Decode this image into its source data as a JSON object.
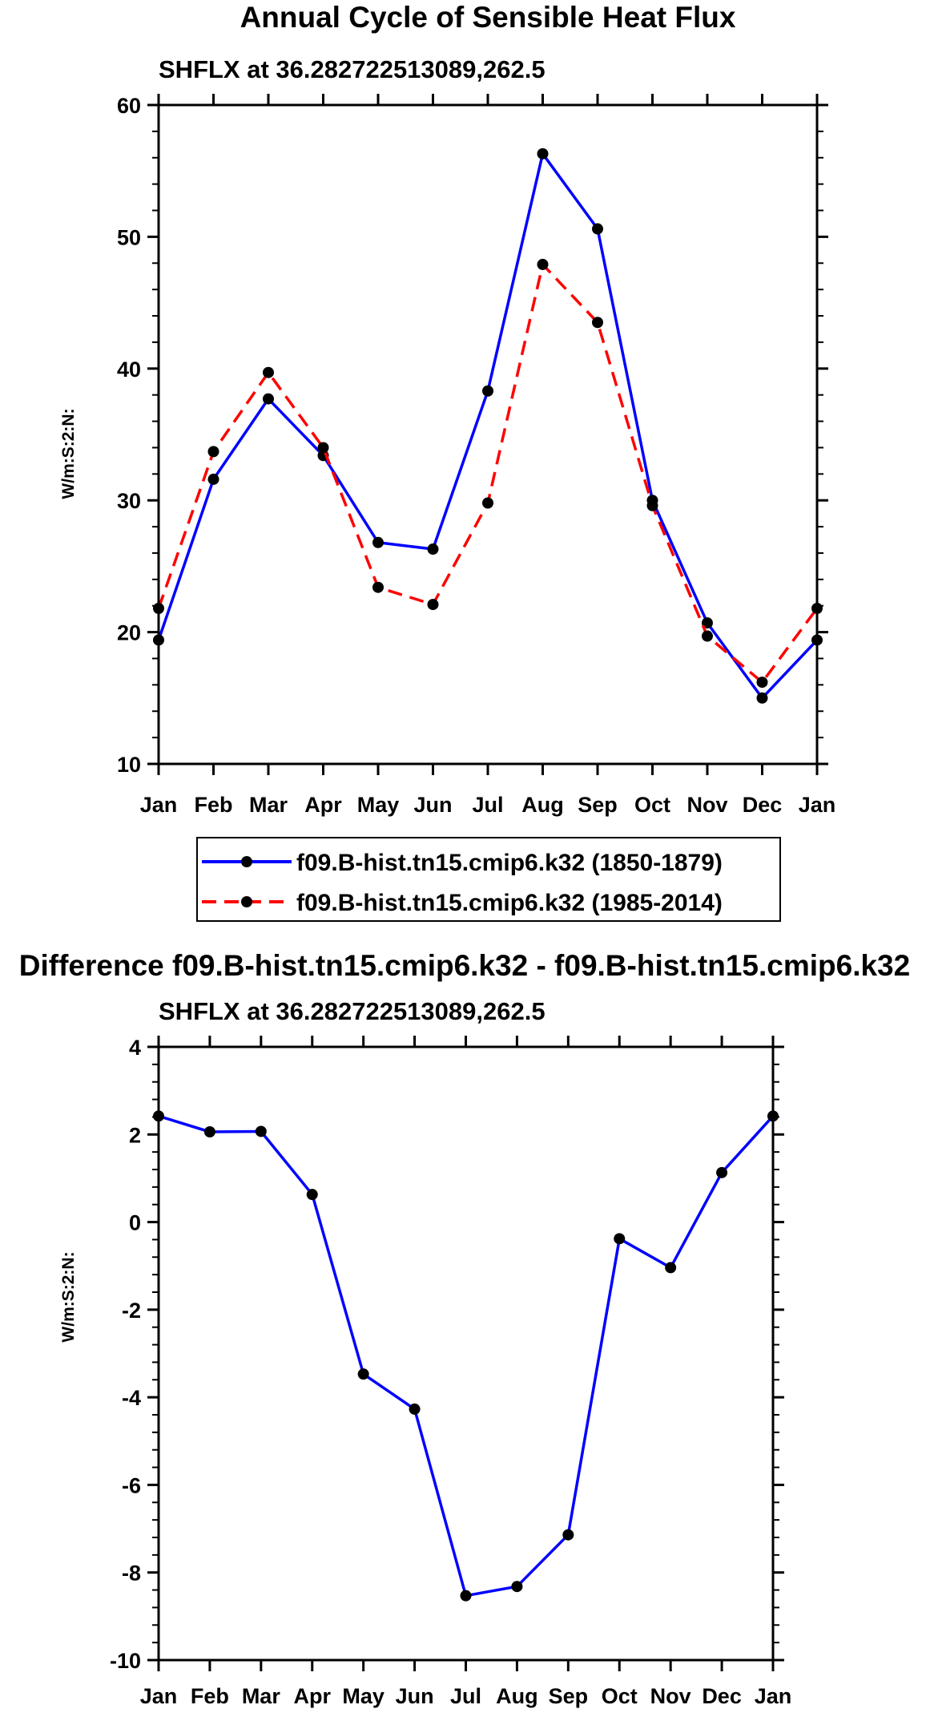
{
  "chart_data": [
    {
      "type": "line",
      "title": "Annual Cycle of Sensible Heat Flux",
      "subtitle": "SHFLX at 36.282722513089,262.5",
      "ylabel": "W/m:S:2:N:",
      "xlabel": "",
      "categories": [
        "Jan",
        "Feb",
        "Mar",
        "Apr",
        "May",
        "Jun",
        "Jul",
        "Aug",
        "Sep",
        "Oct",
        "Nov",
        "Dec",
        "Jan"
      ],
      "ylim": [
        10,
        60
      ],
      "yticks": [
        10,
        20,
        30,
        40,
        50,
        60
      ],
      "ytick_labels": [
        "10",
        "20",
        "30",
        "40",
        "50",
        "60"
      ],
      "series": [
        {
          "name": "f09.B-hist.tn15.cmip6.k32 (1850-1879)",
          "color": "#0000ff",
          "style": "solid",
          "values": [
            19.4,
            31.6,
            37.7,
            33.4,
            26.8,
            26.3,
            38.3,
            56.3,
            50.6,
            30.0,
            20.7,
            15.0,
            19.4
          ]
        },
        {
          "name": "f09.B-hist.tn15.cmip6.k32 (1985-2014)",
          "color": "#ff0000",
          "style": "dashed",
          "values": [
            21.8,
            33.7,
            39.7,
            34.0,
            23.4,
            22.1,
            29.8,
            47.9,
            43.5,
            29.6,
            19.7,
            16.2,
            21.8
          ]
        }
      ]
    },
    {
      "type": "line",
      "title": "Difference f09.B-hist.tn15.cmip6.k32 - f09.B-hist.tn15.cmip6.k32",
      "subtitle": "SHFLX at 36.282722513089,262.5",
      "ylabel": "W/m:S:2:N:",
      "xlabel": "",
      "categories": [
        "Jan",
        "Feb",
        "Mar",
        "Apr",
        "May",
        "Jun",
        "Jul",
        "Aug",
        "Sep",
        "Oct",
        "Nov",
        "Dec",
        "Jan"
      ],
      "ylim": [
        -10,
        4
      ],
      "yticks": [
        -10,
        -8,
        -6,
        -4,
        -2,
        0,
        2,
        4
      ],
      "ytick_labels": [
        "-10",
        "-8",
        "-6",
        "-4",
        "-2",
        "0",
        "2",
        "4"
      ],
      "series": [
        {
          "name": "Difference",
          "color": "#0000ff",
          "style": "solid",
          "values": [
            2.42,
            2.06,
            2.07,
            0.63,
            -3.47,
            -4.27,
            -8.53,
            -8.32,
            -7.14,
            -0.38,
            -1.04,
            1.13,
            2.42
          ]
        }
      ]
    }
  ],
  "colors": {
    "marker": "#000000",
    "axis": "#000000"
  }
}
